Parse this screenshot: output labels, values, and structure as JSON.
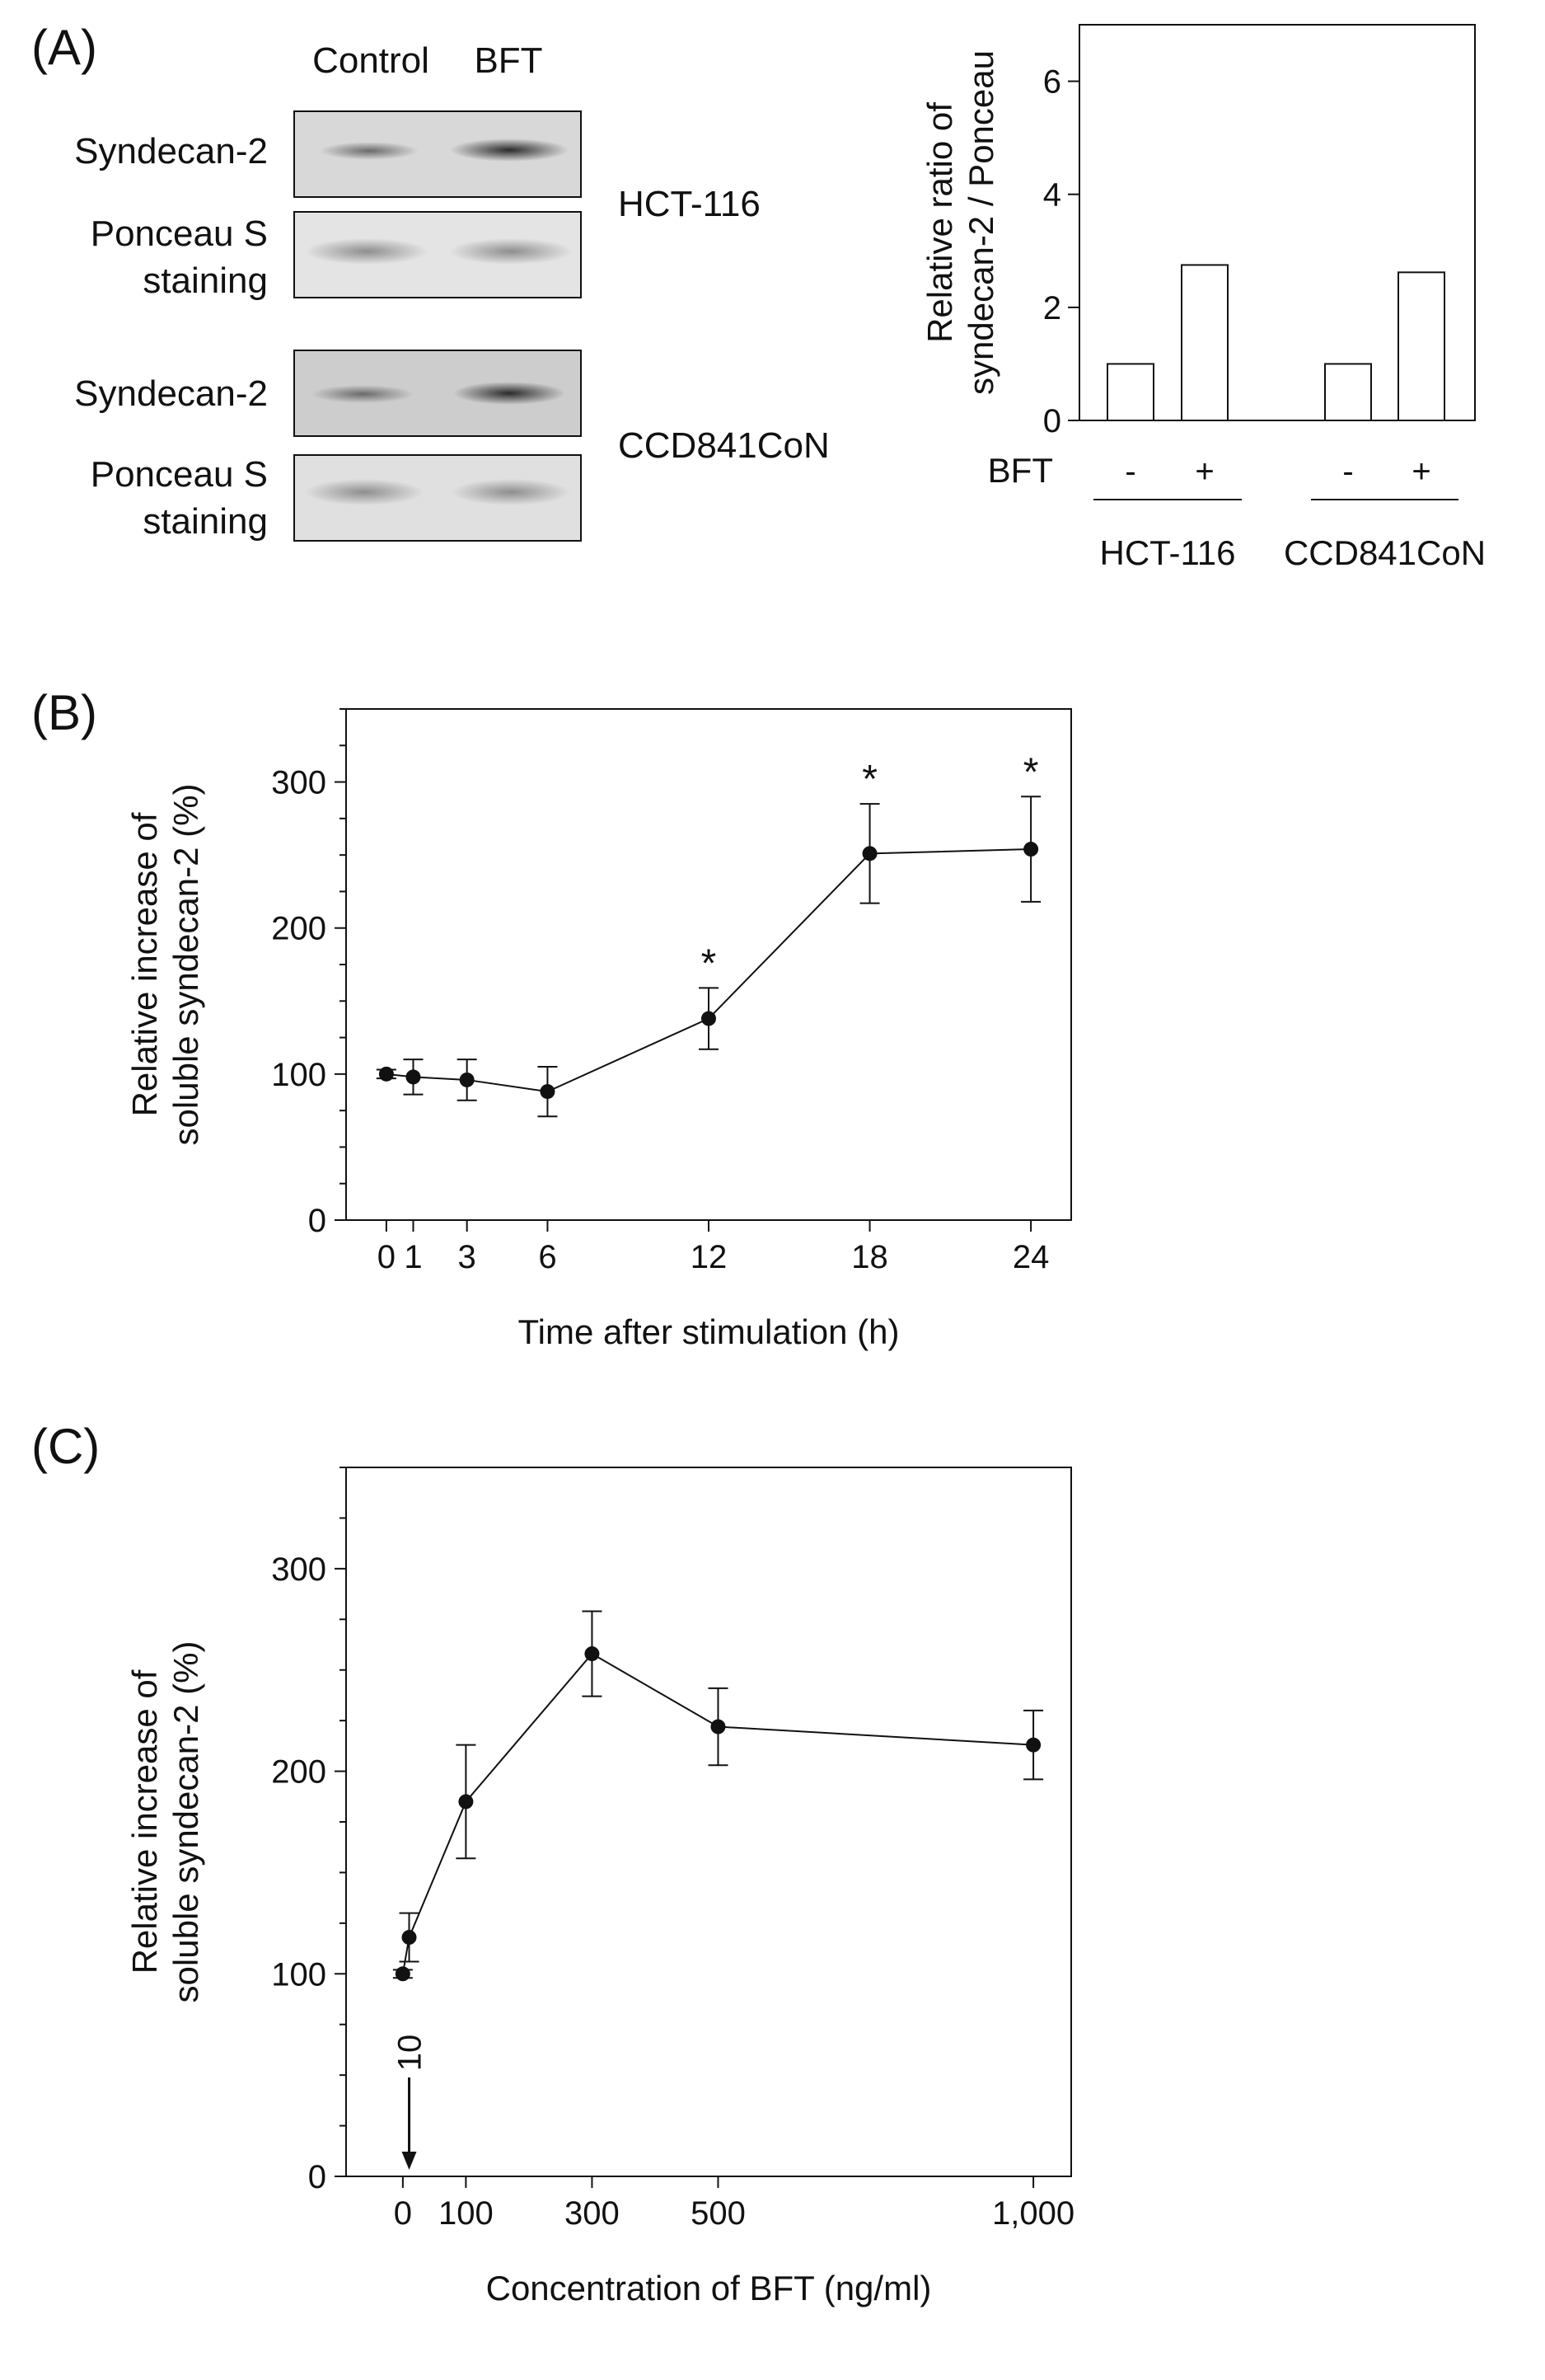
{
  "panel_a": {
    "label": "(A)",
    "columns": [
      "Control",
      "BFT"
    ],
    "blots": [
      {
        "cell_line": "HCT-116",
        "rows": [
          [
            "Syndecan-2"
          ],
          [
            "Ponceau S",
            "staining"
          ]
        ]
      },
      {
        "cell_line": "CCD841CoN",
        "rows": [
          [
            "Syndecan-2"
          ],
          [
            "Ponceau S",
            "staining"
          ]
        ]
      }
    ]
  },
  "panel_b_label": "(B)",
  "panel_c_label": "(C)",
  "colors": {
    "ink": "#111111",
    "bar_fill": "#ffffff",
    "blot_bg": "#dcdcdc"
  },
  "chart_data": [
    {
      "type": "bar",
      "ylabel_lines": [
        "Relative ratio of",
        "syndecan-2 / Ponceau"
      ],
      "ylim": [
        0,
        7
      ],
      "yticks": [
        0,
        2,
        4,
        6
      ],
      "factor_label": "BFT",
      "groups": [
        {
          "name": "HCT-116",
          "bars": [
            {
              "label": "-",
              "value": 1.0
            },
            {
              "label": "+",
              "value": 2.75
            }
          ]
        },
        {
          "name": "CCD841CoN",
          "bars": [
            {
              "label": "-",
              "value": 1.0
            },
            {
              "label": "+",
              "value": 2.62
            }
          ]
        }
      ]
    },
    {
      "type": "line",
      "xlabel": "Time after stimulation (h)",
      "ylabel_lines": [
        "Relative increase of",
        "soluble syndecan-2  (%)"
      ],
      "xlim": [
        -1.5,
        25.5
      ],
      "ylim": [
        0,
        350
      ],
      "xticks": [
        0,
        1,
        3,
        6,
        12,
        18,
        24
      ],
      "yticks": [
        0,
        100,
        200,
        300
      ],
      "x": [
        0,
        1,
        3,
        6,
        12,
        18,
        24
      ],
      "y": [
        100,
        98,
        96,
        88,
        138,
        251,
        254
      ],
      "err": [
        3,
        12,
        14,
        17,
        21,
        34,
        36
      ],
      "significant": [
        false,
        false,
        false,
        false,
        true,
        true,
        true
      ],
      "sig_marker": "*"
    },
    {
      "type": "line",
      "xlabel": "Concentration  of BFT (ng/ml)",
      "ylabel_lines": [
        "Relative increase of",
        "soluble syndecan-2  (%)"
      ],
      "xlim": [
        -90,
        1060
      ],
      "ylim": [
        0,
        350
      ],
      "xticks": [
        0,
        100,
        300,
        500,
        1000
      ],
      "xtick_labels": [
        "0",
        "100",
        "300",
        "500",
        "1,000"
      ],
      "yticks": [
        0,
        100,
        200,
        300
      ],
      "x": [
        0,
        10,
        100,
        300,
        500,
        1000
      ],
      "y": [
        100,
        118,
        185,
        258,
        222,
        213
      ],
      "err": [
        2,
        12,
        28,
        21,
        19,
        17
      ],
      "annotation": {
        "text": "10",
        "x": 10
      }
    }
  ]
}
